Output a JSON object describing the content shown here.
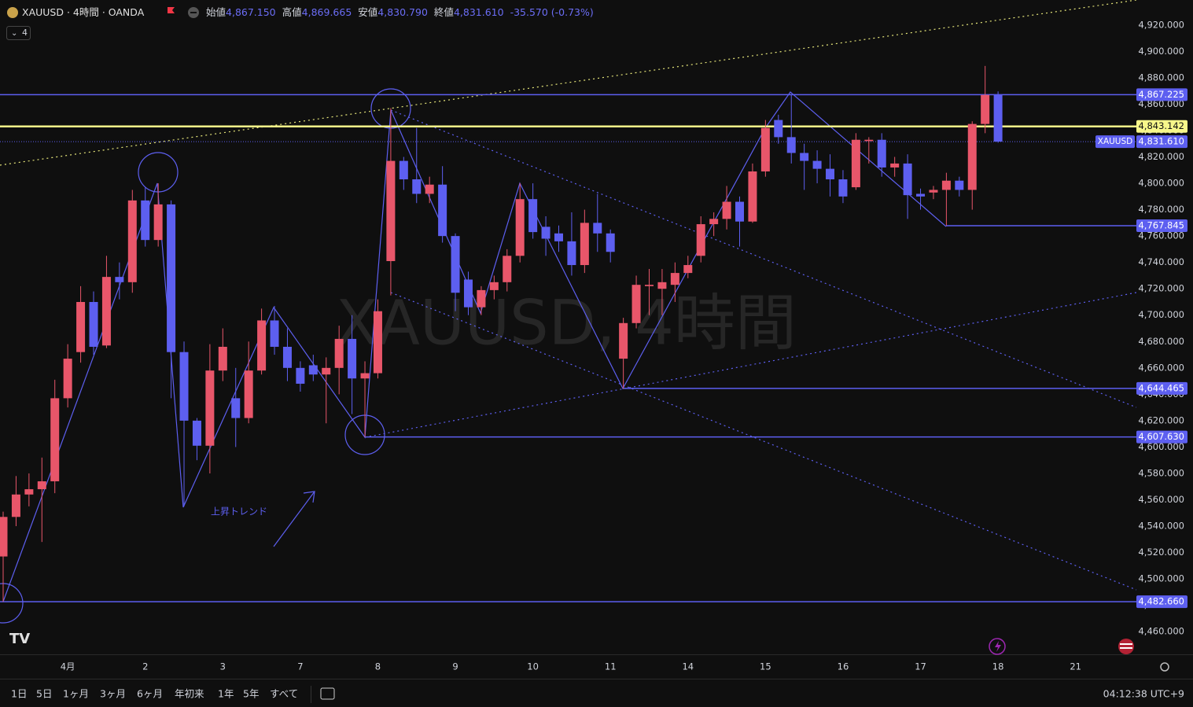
{
  "header": {
    "symbol": "XAUUSD · 4時間 · OANDA",
    "fields": [
      {
        "name": "始値",
        "value": "4,867.150"
      },
      {
        "name": "高値",
        "value": "4,869.665"
      },
      {
        "name": "安値",
        "value": "4,830.790"
      },
      {
        "name": "終値",
        "value": "4,831.610"
      }
    ],
    "change": "-35.570 (-0.73%)",
    "indicator": "4"
  },
  "chart_data": {
    "type": "candlestick",
    "watermark": "XAUUSD, 4時間",
    "annotation": "上昇トレンド",
    "up_color": "#e8566a",
    "down_color": "#5d5ff0",
    "grid": false,
    "categories": [
      null,
      null,
      null,
      null,
      null,
      "4月",
      null,
      null,
      null,
      null,
      null,
      "2",
      null,
      null,
      null,
      null,
      null,
      "3",
      null,
      null,
      null,
      null,
      null,
      "7",
      null,
      null,
      null,
      null,
      null,
      "8",
      null,
      null,
      null,
      null,
      null,
      "9",
      null,
      null,
      null,
      null,
      null,
      "10",
      null,
      null,
      null,
      null,
      null,
      "11",
      null,
      null,
      null,
      null,
      null,
      "14",
      null,
      null,
      null,
      null,
      null,
      "15",
      null,
      null,
      null,
      null,
      null,
      "16",
      null,
      null,
      null,
      null,
      null,
      "17",
      null,
      null,
      null,
      null,
      null,
      "18",
      null,
      null,
      null,
      null,
      null,
      "21"
    ],
    "open": [
      4517,
      4547,
      4564,
      4568,
      4574,
      4637,
      4672,
      4710,
      4677,
      4729,
      4725,
      4787,
      4757,
      4784,
      4672,
      4620,
      4601,
      4658,
      4637,
      4622,
      4658,
      4696,
      4676,
      4660,
      4662,
      4655,
      4660,
      4682,
      4652,
      4656,
      4741,
      4817,
      4803,
      4792,
      4799,
      4760,
      4727,
      4706,
      4719,
      4725,
      4745,
      4788,
      4767,
      4762,
      4756,
      4738,
      4770,
      4762,
      4667,
      4694,
      4722,
      4720,
      4723,
      4732,
      4745,
      4769,
      4773,
      4786,
      4771,
      4809,
      4848,
      4835,
      4823,
      4817,
      4811,
      4803,
      4797,
      4832,
      4833,
      4812,
      4815,
      4792,
      4793,
      4795,
      4802,
      4795,
      4845,
      4867.15,
      null,
      null,
      null,
      null,
      null,
      null
    ],
    "high": [
      4551,
      4578,
      4580,
      4592,
      4651,
      4678,
      4722,
      4718,
      4745,
      4740,
      4795,
      4797,
      4800,
      4787,
      4680,
      4622,
      4678,
      4690,
      4660,
      4680,
      4705,
      4707,
      4690,
      4665,
      4670,
      4668,
      4692,
      4700,
      4665,
      4712,
      4857,
      4820,
      4842,
      4805,
      4813,
      4762,
      4733,
      4722,
      4730,
      4750,
      4800,
      4800,
      4775,
      4768,
      4778,
      4780,
      4792,
      4765,
      4698,
      4730,
      4735,
      4735,
      4740,
      4745,
      4775,
      4778,
      4798,
      4790,
      4815,
      4848,
      4852,
      4867.225,
      4830,
      4825,
      4822,
      4810,
      4838,
      4835,
      4838,
      4820,
      4822,
      4796,
      4798,
      4808,
      4805,
      4847,
      4889,
      4869.665,
      null,
      null,
      null,
      null,
      null,
      null
    ],
    "low": [
      4482.66,
      4540,
      4555,
      4528,
      4565,
      4630,
      4664,
      4670,
      4675,
      4712,
      4717,
      4752,
      4752,
      4637,
      4555,
      4590,
      4580,
      4650,
      4600,
      4618,
      4655,
      4670,
      4650,
      4642,
      4650,
      4618,
      4640,
      4625,
      4607.63,
      4652,
      4715,
      4795,
      4785,
      4785,
      4755,
      4703,
      4700,
      4700,
      4712,
      4718,
      4740,
      4758,
      4745,
      4748,
      4730,
      4732,
      4748,
      4740,
      4644.465,
      4690,
      4700,
      4700,
      4710,
      4728,
      4740,
      4760,
      4765,
      4752,
      4770,
      4805,
      4830,
      4815,
      4795,
      4800,
      4790,
      4785,
      4795,
      4815,
      4805,
      4805,
      4773,
      4780,
      4788,
      4767.845,
      4790,
      4780,
      4838,
      4830.79,
      null,
      null,
      null,
      null,
      null,
      null
    ],
    "close": [
      4547,
      4564,
      4568,
      4574,
      4637,
      4667,
      4710,
      4676,
      4729,
      4725,
      4787,
      4757,
      4784,
      4672,
      4620,
      4601,
      4658,
      4676,
      4622,
      4658,
      4696,
      4676,
      4660,
      4648,
      4655,
      4660,
      4682,
      4652,
      4656,
      4703,
      4817,
      4803,
      4792,
      4799,
      4760,
      4717,
      4706,
      4719,
      4725,
      4745,
      4788,
      4763,
      4758,
      4756,
      4738,
      4770,
      4762,
      4748,
      4694,
      4723,
      4723,
      4725,
      4732,
      4738,
      4769,
      4773,
      4786,
      4771,
      4809,
      4842,
      4835,
      4823,
      4817,
      4811,
      4803,
      4790,
      4833,
      4833,
      4812,
      4815,
      4791,
      4790,
      4795,
      4802,
      4795,
      4845,
      4867,
      4831.61,
      null,
      null,
      null,
      null,
      null,
      null
    ],
    "ylim": [
      4444,
      4939
    ],
    "yticks": [
      {
        "value": 4460,
        "label": "4,460.000"
      },
      {
        "value": 4480,
        "label": "4,480.000"
      },
      {
        "value": 4500,
        "label": "4,500.000"
      },
      {
        "value": 4520,
        "label": "4,520.000"
      },
      {
        "value": 4540,
        "label": "4,540.000"
      },
      {
        "value": 4560,
        "label": "4,560.000"
      },
      {
        "value": 4580,
        "label": "4,580.000"
      },
      {
        "value": 4600,
        "label": "4,600.000"
      },
      {
        "value": 4620,
        "label": "4,620.000"
      },
      {
        "value": 4640,
        "label": "4,640.000"
      },
      {
        "value": 4660,
        "label": "4,660.000"
      },
      {
        "value": 4680,
        "label": "4,680.000"
      },
      {
        "value": 4700,
        "label": "4,700.000"
      },
      {
        "value": 4720,
        "label": "4,720.000"
      },
      {
        "value": 4740,
        "label": "4,740.000"
      },
      {
        "value": 4760,
        "label": "4,760.000"
      },
      {
        "value": 4780,
        "label": "4,780.000"
      },
      {
        "value": 4800,
        "label": "4,800.000"
      },
      {
        "value": 4820,
        "label": "4,820.000"
      },
      {
        "value": 4840,
        "label": "4,840.000"
      },
      {
        "value": 4860,
        "label": "4,860.000"
      },
      {
        "value": 4880,
        "label": "4,880.000"
      },
      {
        "value": 4900,
        "label": "4,900.000"
      },
      {
        "value": 4920,
        "label": "4,920.000"
      }
    ],
    "price_lines": {
      "values": [
        4867.225,
        4843.142,
        4767.845,
        4644.465,
        4607.63,
        4482.66
      ],
      "value_labels": [
        "4,867.225",
        "4,843.142",
        "4,767.845",
        "4,644.465",
        "4,607.630",
        "4,482.660"
      ],
      "colors": [
        "#5d5ff0",
        "#f7f78a",
        "#5d5ff0",
        "#5d5ff0",
        "#5d5ff0",
        "#5d5ff0"
      ]
    },
    "last_price": {
      "value": 4831.61,
      "value_label": "4,831.610",
      "tag": "XAUUSD",
      "color": "#5d5ff0"
    }
  },
  "toolbar": {
    "ranges": [
      "1日",
      "5日",
      "1ヶ月",
      "3ヶ月",
      "6ヶ月",
      "年初来",
      "1年",
      "5年",
      "すべて"
    ],
    "clock": "04:12:38 UTC+9"
  }
}
